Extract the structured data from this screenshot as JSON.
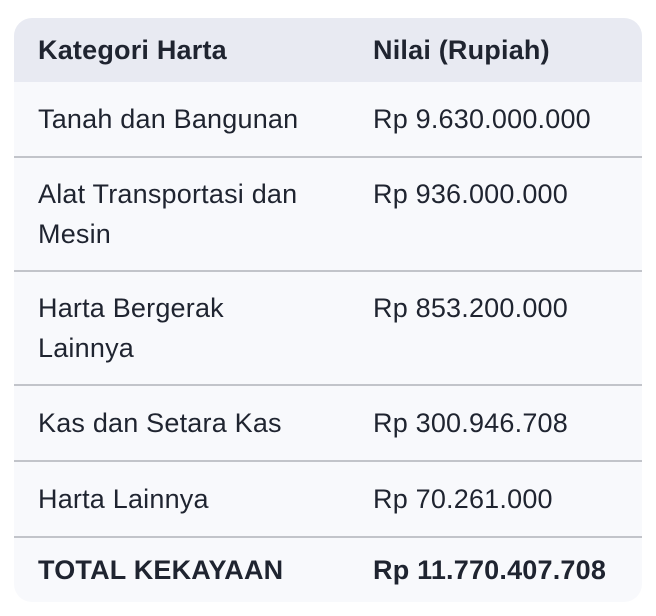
{
  "table": {
    "headers": {
      "category": "Kategori Harta",
      "value": "Nilai (Rupiah)"
    },
    "rows": [
      {
        "category": "Tanah dan Bangunan",
        "value": "Rp 9.630.000.000"
      },
      {
        "category": "Alat Transportasi dan Mesin",
        "value": "Rp 936.000.000"
      },
      {
        "category": "Harta Bergerak Lainnya",
        "value": "Rp 853.200.000"
      },
      {
        "category": "Kas dan Setara Kas",
        "value": "Rp 300.946.708"
      },
      {
        "category": "Harta Lainnya",
        "value": "Rp 70.261.000"
      }
    ],
    "total_row": {
      "category": "TOTAL KEKAYAAN",
      "value": "Rp 11.770.407.708"
    }
  },
  "colors": {
    "page_background": "#ffffff",
    "header_background": "#e8eaf2",
    "row_background": "#f8f9fc",
    "divider": "#c2c4ca",
    "text": "#1f2430"
  },
  "chart_data": {
    "type": "table",
    "title": "",
    "columns": [
      "Kategori Harta",
      "Nilai (Rupiah)"
    ],
    "rows": [
      [
        "Tanah dan Bangunan",
        "Rp 9.630.000.000"
      ],
      [
        "Alat Transportasi dan Mesin",
        "Rp 936.000.000"
      ],
      [
        "Harta Bergerak Lainnya",
        "Rp 853.200.000"
      ],
      [
        "Kas dan Setara Kas",
        "Rp 300.946.708"
      ],
      [
        "Harta Lainnya",
        "Rp 70.261.000"
      ],
      [
        "TOTAL KEKAYAAN",
        "Rp 11.770.407.708"
      ]
    ],
    "categories": [
      "Tanah dan Bangunan",
      "Alat Transportasi dan Mesin",
      "Harta Bergerak Lainnya",
      "Kas dan Setara Kas",
      "Harta Lainnya"
    ],
    "values": [
      9630000000,
      936000000,
      853200000,
      300946708,
      70261000
    ],
    "total": 11770407708,
    "currency": "Rupiah"
  }
}
